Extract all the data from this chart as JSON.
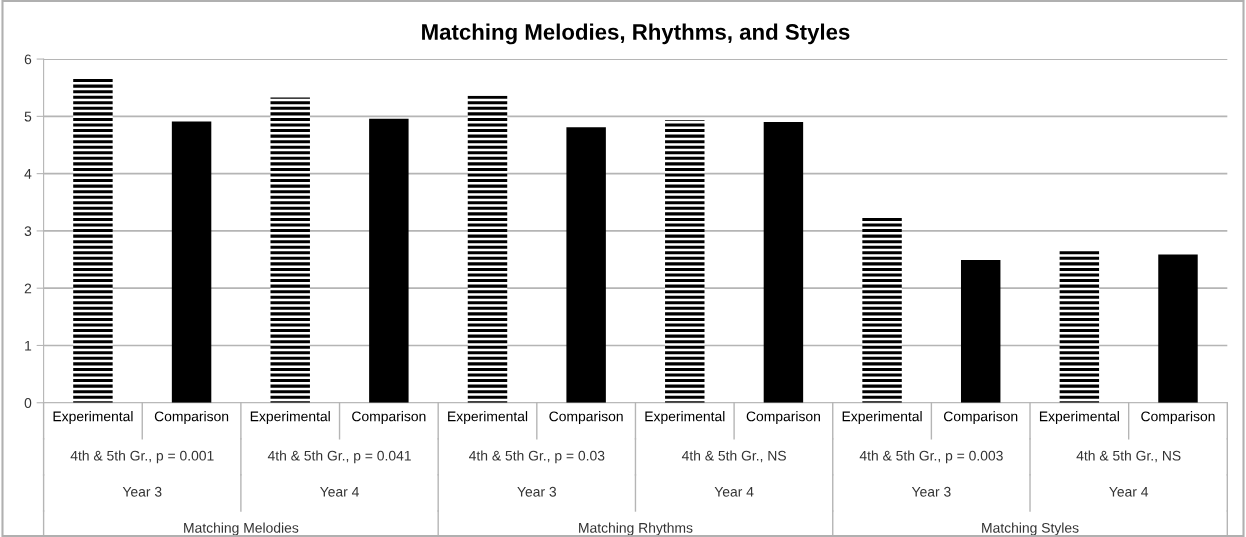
{
  "chart_data": {
    "type": "bar",
    "title": "Matching Melodies, Rhythms, and Styles",
    "categories": [
      "Experimental",
      "Comparison",
      "Experimental",
      "Comparison",
      "Experimental",
      "Comparison",
      "Experimental",
      "Comparison",
      "Experimental",
      "Comparison",
      "Experimental",
      "Comparison"
    ],
    "series": [
      {
        "color": "#000000",
        "values": [
          5.65,
          null,
          5.33,
          null,
          5.36,
          null,
          4.93,
          null,
          3.23,
          null,
          2.65,
          null
        ]
      },
      {
        "color": "#000000",
        "values": [
          null,
          4.91,
          null,
          4.96,
          null,
          4.81,
          null,
          4.9,
          null,
          2.49,
          null,
          2.59
        ]
      }
    ],
    "annotations": [
      "4th & 5th Gr., p = 0.001",
      "4th & 5th Gr., p = 0.041",
      "4th & 5th Gr., p = 0.03",
      "4th & 5th Gr., NS",
      "4th & 5th Gr., p = 0.003",
      "4th & 5th Gr., NS",
      "Year 3",
      "Year 4",
      "Year 3",
      "Year 4",
      "Year 3",
      "Year 4",
      "Matching Melodies",
      "Matching Rhythms",
      "Matching Styles"
    ],
    "ylim": [
      0,
      6
    ],
    "yticks": [
      0,
      1,
      2,
      3,
      4,
      5,
      6
    ],
    "grid": "y"
  }
}
